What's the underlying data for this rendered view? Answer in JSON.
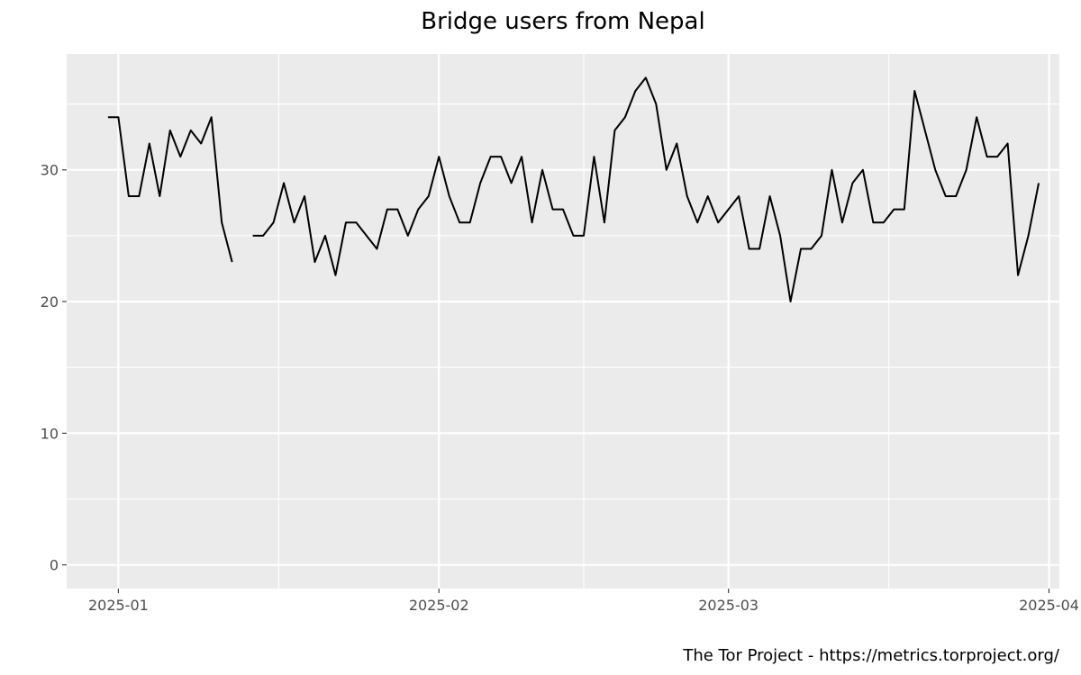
{
  "chart_data": {
    "type": "line",
    "title": "Bridge users from Nepal",
    "xlabel": "",
    "ylabel": "",
    "x_ticks": [
      "2025-01-01",
      "2025-02-01",
      "2025-03-01",
      "2025-04-01"
    ],
    "x_tick_labels": [
      "2025-01",
      "2025-02",
      "2025-03",
      "2025-04"
    ],
    "y_ticks": [
      0,
      10,
      20,
      30
    ],
    "xlim": [
      "2024-12-27",
      "2025-04-02"
    ],
    "ylim": [
      -1.8,
      38.8
    ],
    "grid": true,
    "background": "#ebebeb",
    "line_color": "#000000",
    "series": [
      {
        "points": [
          [
            "2024-12-31",
            34
          ],
          [
            "2025-01-01",
            34
          ],
          [
            "2025-01-02",
            28
          ],
          [
            "2025-01-03",
            28
          ],
          [
            "2025-01-04",
            32
          ],
          [
            "2025-01-05",
            28
          ],
          [
            "2025-01-06",
            33
          ],
          [
            "2025-01-07",
            31
          ],
          [
            "2025-01-08",
            33
          ],
          [
            "2025-01-09",
            32
          ],
          [
            "2025-01-10",
            34
          ],
          [
            "2025-01-11",
            26
          ],
          [
            "2025-01-12",
            23
          ],
          [
            "2025-01-13",
            null
          ],
          [
            "2025-01-14",
            25
          ],
          [
            "2025-01-15",
            25
          ],
          [
            "2025-01-16",
            26
          ],
          [
            "2025-01-17",
            29
          ],
          [
            "2025-01-18",
            26
          ],
          [
            "2025-01-19",
            28
          ],
          [
            "2025-01-20",
            23
          ],
          [
            "2025-01-21",
            25
          ],
          [
            "2025-01-22",
            22
          ],
          [
            "2025-01-23",
            26
          ],
          [
            "2025-01-24",
            26
          ],
          [
            "2025-01-25",
            25
          ],
          [
            "2025-01-26",
            24
          ],
          [
            "2025-01-27",
            27
          ],
          [
            "2025-01-28",
            27
          ],
          [
            "2025-01-29",
            25
          ],
          [
            "2025-01-30",
            27
          ],
          [
            "2025-01-31",
            28
          ],
          [
            "2025-02-01",
            31
          ],
          [
            "2025-02-02",
            28
          ],
          [
            "2025-02-03",
            26
          ],
          [
            "2025-02-04",
            26
          ],
          [
            "2025-02-05",
            29
          ],
          [
            "2025-02-06",
            31
          ],
          [
            "2025-02-07",
            31
          ],
          [
            "2025-02-08",
            29
          ],
          [
            "2025-02-09",
            31
          ],
          [
            "2025-02-10",
            26
          ],
          [
            "2025-02-11",
            30
          ],
          [
            "2025-02-12",
            27
          ],
          [
            "2025-02-13",
            27
          ],
          [
            "2025-02-14",
            25
          ],
          [
            "2025-02-15",
            25
          ],
          [
            "2025-02-16",
            31
          ],
          [
            "2025-02-17",
            26
          ],
          [
            "2025-02-18",
            33
          ],
          [
            "2025-02-19",
            34
          ],
          [
            "2025-02-20",
            36
          ],
          [
            "2025-02-21",
            37
          ],
          [
            "2025-02-22",
            35
          ],
          [
            "2025-02-23",
            30
          ],
          [
            "2025-02-24",
            32
          ],
          [
            "2025-02-25",
            28
          ],
          [
            "2025-02-26",
            26
          ],
          [
            "2025-02-27",
            28
          ],
          [
            "2025-02-28",
            26
          ],
          [
            "2025-03-01",
            27
          ],
          [
            "2025-03-02",
            28
          ],
          [
            "2025-03-03",
            24
          ],
          [
            "2025-03-04",
            24
          ],
          [
            "2025-03-05",
            28
          ],
          [
            "2025-03-06",
            25
          ],
          [
            "2025-03-07",
            20
          ],
          [
            "2025-03-08",
            24
          ],
          [
            "2025-03-09",
            24
          ],
          [
            "2025-03-10",
            25
          ],
          [
            "2025-03-11",
            30
          ],
          [
            "2025-03-12",
            26
          ],
          [
            "2025-03-13",
            29
          ],
          [
            "2025-03-14",
            30
          ],
          [
            "2025-03-15",
            26
          ],
          [
            "2025-03-16",
            26
          ],
          [
            "2025-03-17",
            27
          ],
          [
            "2025-03-18",
            27
          ],
          [
            "2025-03-19",
            36
          ],
          [
            "2025-03-20",
            33
          ],
          [
            "2025-03-21",
            30
          ],
          [
            "2025-03-22",
            28
          ],
          [
            "2025-03-23",
            28
          ],
          [
            "2025-03-24",
            30
          ],
          [
            "2025-03-25",
            34
          ],
          [
            "2025-03-26",
            31
          ],
          [
            "2025-03-27",
            31
          ],
          [
            "2025-03-28",
            32
          ],
          [
            "2025-03-29",
            22
          ],
          [
            "2025-03-30",
            25
          ],
          [
            "2025-03-31",
            29
          ]
        ]
      }
    ]
  },
  "footer": {
    "credit": "The Tor Project - https://metrics.torproject.org/"
  }
}
